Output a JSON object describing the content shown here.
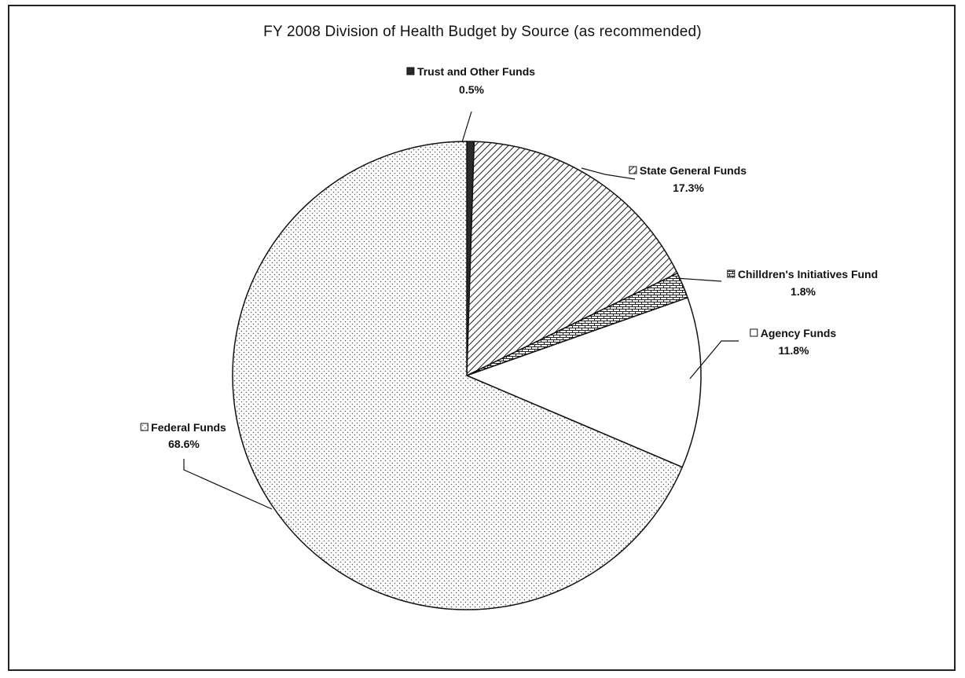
{
  "chart_data": {
    "type": "pie",
    "title": "FY 2008 Division of Health Budget by Source (as recommended)",
    "slices": [
      {
        "label": "Trust and Other Funds",
        "value": 0.5,
        "value_label": "0.5%",
        "pattern": "solid-dark",
        "color": "#2a2a2a"
      },
      {
        "label": "State General Funds",
        "value": 17.3,
        "value_label": "17.3%",
        "pattern": "diagonal-hatch",
        "color": "#333333"
      },
      {
        "label": "Chilldren's Initiatives Fund",
        "value": 1.8,
        "value_label": "1.8%",
        "pattern": "brick",
        "color": "#333333"
      },
      {
        "label": "Agency Funds",
        "value": 11.8,
        "value_label": "11.8%",
        "pattern": "none",
        "color": "#ffffff"
      },
      {
        "label": "Federal Funds",
        "value": 68.6,
        "value_label": "68.6%",
        "pattern": "dots",
        "color": "#555555"
      }
    ],
    "start_angle_deg": 0,
    "direction": "clockwise",
    "legend": "none"
  }
}
